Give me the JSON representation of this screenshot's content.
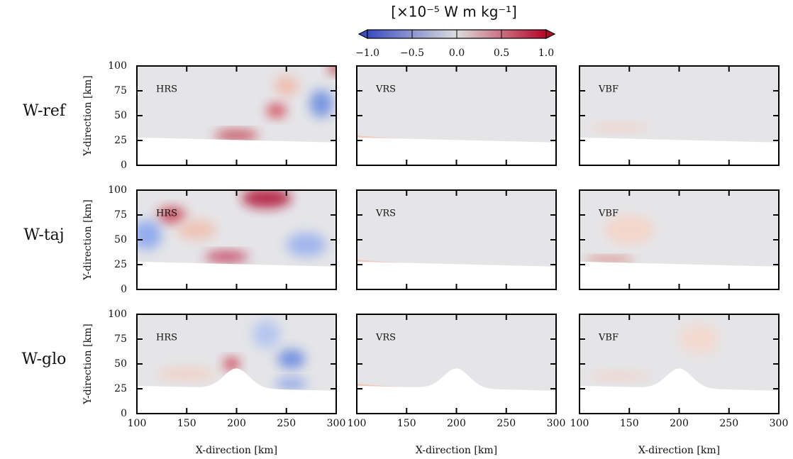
{
  "chart_data": {
    "type": "heatmap-grid",
    "colorbar": {
      "label": "[×10⁻⁵ W m kg⁻¹]",
      "lim": [
        -1,
        1
      ],
      "ticks": [
        {
          "value": -1,
          "label": "−1.0"
        },
        {
          "value": -0.5,
          "label": "−0.5"
        },
        {
          "value": 0,
          "label": "0.0"
        },
        0.5,
        {
          "value": 1,
          "label": "1.0"
        }
      ],
      "colors": [
        "#3b4cc0",
        "#dddddd",
        "#b40426"
      ]
    },
    "rows": [
      "W-ref",
      "W-taj",
      "W-glo"
    ],
    "panels": [
      "HRS",
      "VRS",
      "VBF"
    ],
    "xlabel": "X-direction [km]",
    "ylabel": "Y-direction [km]",
    "xlim": [
      100,
      300
    ],
    "xticks": [
      100,
      150,
      200,
      250,
      300
    ],
    "ylim": [
      0,
      100
    ],
    "yticks": [
      0,
      25,
      50,
      75,
      100
    ]
  }
}
